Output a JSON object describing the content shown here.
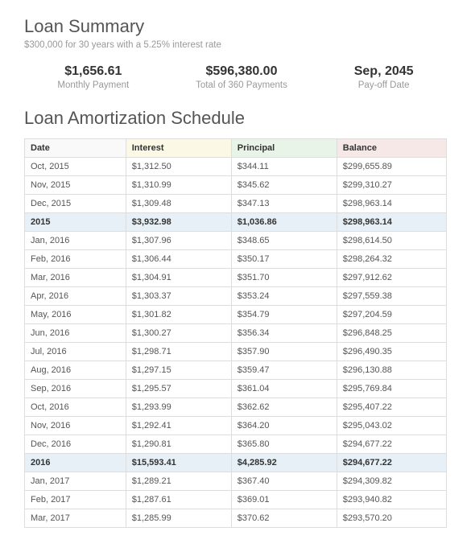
{
  "summary": {
    "title": "Loan Summary",
    "subtitle": "$300,000 for 30 years with a 5.25% interest rate",
    "stats": [
      {
        "value": "$1,656.61",
        "label": "Monthly Payment"
      },
      {
        "value": "$596,380.00",
        "label": "Total of 360 Payments"
      },
      {
        "value": "Sep, 2045",
        "label": "Pay-off Date"
      }
    ]
  },
  "schedule": {
    "title": "Loan Amortization Schedule",
    "columns": [
      "Date",
      "Interest",
      "Principal",
      "Balance"
    ],
    "header_colors": [
      "#f9f9f9",
      "#fbf9e6",
      "#e9f4e9",
      "#f7e8e8"
    ],
    "year_row_color": "#e6f0f6",
    "border_color": "#dddddd",
    "rows": [
      {
        "date": "Oct, 2015",
        "interest": "$1,312.50",
        "principal": "$344.11",
        "balance": "$299,655.89",
        "year": false
      },
      {
        "date": "Nov, 2015",
        "interest": "$1,310.99",
        "principal": "$345.62",
        "balance": "$299,310.27",
        "year": false
      },
      {
        "date": "Dec, 2015",
        "interest": "$1,309.48",
        "principal": "$347.13",
        "balance": "$298,963.14",
        "year": false
      },
      {
        "date": "2015",
        "interest": "$3,932.98",
        "principal": "$1,036.86",
        "balance": "$298,963.14",
        "year": true
      },
      {
        "date": "Jan, 2016",
        "interest": "$1,307.96",
        "principal": "$348.65",
        "balance": "$298,614.50",
        "year": false
      },
      {
        "date": "Feb, 2016",
        "interest": "$1,306.44",
        "principal": "$350.17",
        "balance": "$298,264.32",
        "year": false
      },
      {
        "date": "Mar, 2016",
        "interest": "$1,304.91",
        "principal": "$351.70",
        "balance": "$297,912.62",
        "year": false
      },
      {
        "date": "Apr, 2016",
        "interest": "$1,303.37",
        "principal": "$353.24",
        "balance": "$297,559.38",
        "year": false
      },
      {
        "date": "May, 2016",
        "interest": "$1,301.82",
        "principal": "$354.79",
        "balance": "$297,204.59",
        "year": false
      },
      {
        "date": "Jun, 2016",
        "interest": "$1,300.27",
        "principal": "$356.34",
        "balance": "$296,848.25",
        "year": false
      },
      {
        "date": "Jul, 2016",
        "interest": "$1,298.71",
        "principal": "$357.90",
        "balance": "$296,490.35",
        "year": false
      },
      {
        "date": "Aug, 2016",
        "interest": "$1,297.15",
        "principal": "$359.47",
        "balance": "$296,130.88",
        "year": false
      },
      {
        "date": "Sep, 2016",
        "interest": "$1,295.57",
        "principal": "$361.04",
        "balance": "$295,769.84",
        "year": false
      },
      {
        "date": "Oct, 2016",
        "interest": "$1,293.99",
        "principal": "$362.62",
        "balance": "$295,407.22",
        "year": false
      },
      {
        "date": "Nov, 2016",
        "interest": "$1,292.41",
        "principal": "$364.20",
        "balance": "$295,043.02",
        "year": false
      },
      {
        "date": "Dec, 2016",
        "interest": "$1,290.81",
        "principal": "$365.80",
        "balance": "$294,677.22",
        "year": false
      },
      {
        "date": "2016",
        "interest": "$15,593.41",
        "principal": "$4,285.92",
        "balance": "$294,677.22",
        "year": true
      },
      {
        "date": "Jan, 2017",
        "interest": "$1,289.21",
        "principal": "$367.40",
        "balance": "$294,309.82",
        "year": false
      },
      {
        "date": "Feb, 2017",
        "interest": "$1,287.61",
        "principal": "$369.01",
        "balance": "$293,940.82",
        "year": false
      },
      {
        "date": "Mar, 2017",
        "interest": "$1,285.99",
        "principal": "$370.62",
        "balance": "$293,570.20",
        "year": false
      }
    ]
  }
}
